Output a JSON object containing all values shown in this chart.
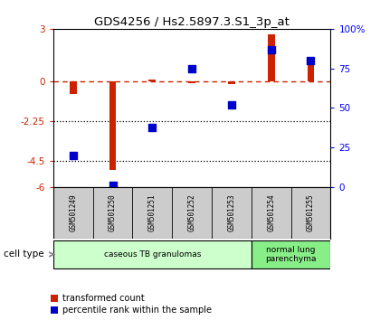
{
  "title": "GDS4256 / Hs2.5897.3.S1_3p_at",
  "samples": [
    "GSM501249",
    "GSM501250",
    "GSM501251",
    "GSM501252",
    "GSM501253",
    "GSM501254",
    "GSM501255"
  ],
  "transformed_count": [
    -0.7,
    -5.0,
    0.12,
    -0.08,
    -0.12,
    2.7,
    1.1
  ],
  "percentile_rank": [
    20,
    1,
    38,
    75,
    52,
    87,
    80
  ],
  "ylim_left": [
    -6,
    3
  ],
  "ylim_right": [
    0,
    100
  ],
  "yticks_left": [
    3,
    0,
    -2.25,
    -4.5,
    -6
  ],
  "yticks_right": [
    100,
    75,
    50,
    25,
    0
  ],
  "ytick_labels_left": [
    "3",
    "0",
    "-2.25",
    "-4.5",
    "-6"
  ],
  "ytick_labels_right": [
    "100%",
    "75",
    "50",
    "25",
    "0"
  ],
  "dotted_lines": [
    -2.25,
    -4.5
  ],
  "bar_color": "#cc2200",
  "dot_color": "#0000cc",
  "cell_types": [
    {
      "label": "caseous TB granulomas",
      "span": [
        0,
        5
      ],
      "color": "#ccffcc"
    },
    {
      "label": "normal lung\nparenchyma",
      "span": [
        5,
        7
      ],
      "color": "#88ee88"
    }
  ],
  "legend_bar_label": "transformed count",
  "legend_dot_label": "percentile rank within the sample",
  "cell_type_label": "cell type",
  "bg_color": "#ffffff",
  "dashed_color": "#cc2200",
  "bar_width": 0.18,
  "dot_size": 28,
  "label_bg": "#cccccc",
  "n_samples": 7
}
